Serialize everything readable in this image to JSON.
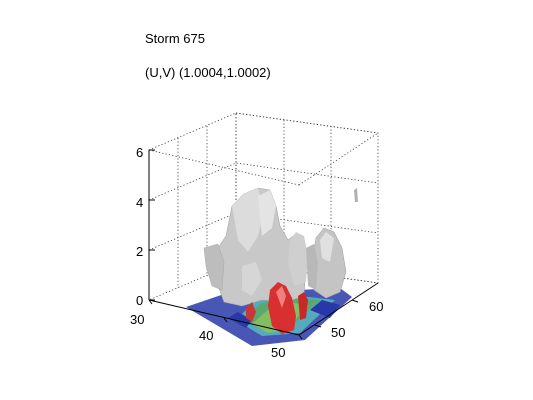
{
  "chart_data": {
    "type": "scatter",
    "title": "Storm 675",
    "subtitle": "(U,V) (1.0004,1.0002)",
    "xlabel": "",
    "ylabel": "",
    "zlabel": "",
    "axes": {
      "x": {
        "ticks": [
          "30",
          "40",
          "50"
        ],
        "lim": [
          30,
          50
        ]
      },
      "y": {
        "ticks": [
          "50",
          "60"
        ],
        "lim": [
          42,
          62
        ]
      },
      "z": {
        "ticks": [
          "0",
          "2",
          "4",
          "6"
        ],
        "lim": [
          0,
          6
        ]
      }
    },
    "grid": true,
    "projection": "3d",
    "colors": {
      "isosurface": "#c8c8c8",
      "rain_core": "#d83030",
      "low_level_blue": "#2838a8",
      "low_level_green": "#5aa870",
      "low_level_cyan": "#58b8c0"
    },
    "features": [
      "isosurface",
      "base-field-slice"
    ]
  }
}
